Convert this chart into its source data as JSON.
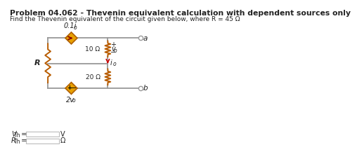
{
  "title": "Problem 04.062 - Thevenin equivalent calculation with dependent sources only",
  "subtitle": "Find the Thevenin equivalent of the circuit given below, where R = 45 Ω",
  "res1_label": "10 Ω",
  "res2_label": "20 Ω",
  "dep_src1_label": "0.1i",
  "dep_src1_sub": "o",
  "dep_src2_label": "2v",
  "dep_src2_sub": "o",
  "v0_label": "v",
  "v0_sub": "o",
  "i0_label": "i",
  "i0_sub": "o",
  "R_label": "R",
  "terminal_a": "a",
  "terminal_b": "b",
  "V_unit": "V",
  "Ohm_unit": "Ω",
  "wire_color": "#999999",
  "resistor_color": "#b85c00",
  "dep_source_fill": "#e8a000",
  "dep_source_edge": "#b06000",
  "arrow_color": "#cc0000",
  "text_color": "#222222",
  "plus_minus_color": "#111111"
}
